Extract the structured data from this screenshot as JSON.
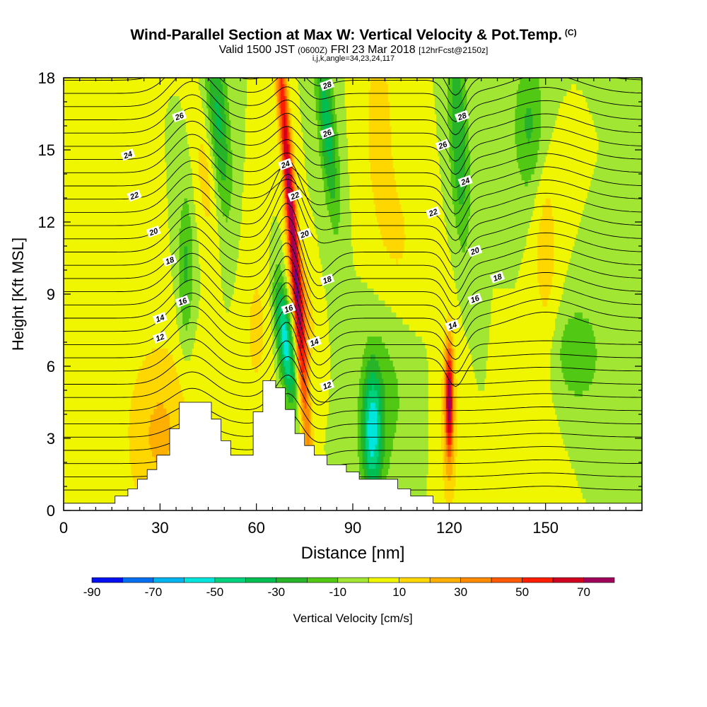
{
  "title": {
    "main": "Wind-Parallel Section at Max W: Vertical Velocity & Pot.Temp.",
    "copyright": "(C)",
    "valid_prefix": "Valid 1500 JST",
    "valid_utc": "(0600Z)",
    "valid_date": "FRI 23 Mar 2018",
    "forecast": "[12hrFcst@2150z]",
    "indices": "i,j,k,angle=34,23,24,117"
  },
  "chart_data": {
    "type": "heatmap",
    "xlabel": "Distance [nm]",
    "ylabel": "Height [Kft MSL]",
    "xlim": [
      0,
      180
    ],
    "ylim": [
      0,
      18
    ],
    "x_ticks": [
      0,
      30,
      60,
      90,
      120,
      150
    ],
    "y_ticks": [
      0,
      3,
      6,
      9,
      12,
      15,
      18
    ],
    "colorbar": {
      "label": "Vertical Velocity [cm/s]",
      "tick_labels": [
        "-90",
        "-70",
        "-50",
        "-30",
        "-10",
        "10",
        "30",
        "50",
        "70"
      ],
      "tick_values": [
        -90,
        -70,
        -50,
        -30,
        -10,
        10,
        30,
        50,
        70
      ],
      "bounds": [
        -90,
        -80,
        -70,
        -60,
        -50,
        -40,
        -30,
        -20,
        -10,
        0,
        10,
        20,
        30,
        40,
        50,
        60,
        70,
        80
      ],
      "colors": [
        "#0010f0",
        "#0070f0",
        "#00b4f0",
        "#00e6dc",
        "#00d27d",
        "#00be52",
        "#28b428",
        "#50c814",
        "#a0e632",
        "#f0f500",
        "#ffd700",
        "#ffaf00",
        "#ff8c00",
        "#ff5a00",
        "#ff1e00",
        "#d2001e",
        "#a0005a",
        "#640096"
      ]
    },
    "theta_contour_labels": [
      {
        "x": 36,
        "y": 16.4,
        "text": "26"
      },
      {
        "x": 20,
        "y": 14.8,
        "text": "24"
      },
      {
        "x": 22,
        "y": 13.1,
        "text": "22"
      },
      {
        "x": 28,
        "y": 11.6,
        "text": "20"
      },
      {
        "x": 33,
        "y": 10.4,
        "text": "18"
      },
      {
        "x": 37,
        "y": 8.7,
        "text": "16"
      },
      {
        "x": 30,
        "y": 8.0,
        "text": "14"
      },
      {
        "x": 30,
        "y": 7.2,
        "text": "12"
      },
      {
        "x": 82,
        "y": 17.7,
        "text": "28"
      },
      {
        "x": 82,
        "y": 15.7,
        "text": "26"
      },
      {
        "x": 69,
        "y": 14.4,
        "text": "24"
      },
      {
        "x": 72,
        "y": 13.1,
        "text": "22"
      },
      {
        "x": 75,
        "y": 11.5,
        "text": "20"
      },
      {
        "x": 82,
        "y": 9.6,
        "text": "18"
      },
      {
        "x": 70,
        "y": 8.4,
        "text": "16"
      },
      {
        "x": 78,
        "y": 7.0,
        "text": "14"
      },
      {
        "x": 82,
        "y": 5.2,
        "text": "12"
      },
      {
        "x": 124,
        "y": 16.4,
        "text": "28"
      },
      {
        "x": 118,
        "y": 15.2,
        "text": "26"
      },
      {
        "x": 125,
        "y": 13.7,
        "text": "24"
      },
      {
        "x": 115,
        "y": 12.4,
        "text": "22"
      },
      {
        "x": 128,
        "y": 10.8,
        "text": "20"
      },
      {
        "x": 135,
        "y": 9.7,
        "text": "18"
      },
      {
        "x": 128,
        "y": 8.8,
        "text": "16"
      },
      {
        "x": 121,
        "y": 7.7,
        "text": "14"
      }
    ],
    "terrain": [
      [
        0,
        0.3
      ],
      [
        16,
        0.3
      ],
      [
        16,
        0.6
      ],
      [
        20,
        0.6
      ],
      [
        20,
        0.9
      ],
      [
        23,
        0.9
      ],
      [
        23,
        1.3
      ],
      [
        26,
        1.3
      ],
      [
        26,
        1.7
      ],
      [
        29,
        1.7
      ],
      [
        29,
        2.3
      ],
      [
        33,
        2.3
      ],
      [
        33,
        3.4
      ],
      [
        36,
        3.4
      ],
      [
        36,
        4.5
      ],
      [
        46,
        4.5
      ],
      [
        46,
        3.8
      ],
      [
        49,
        3.8
      ],
      [
        49,
        2.9
      ],
      [
        52,
        2.9
      ],
      [
        52,
        2.3
      ],
      [
        59,
        2.3
      ],
      [
        59,
        4.1
      ],
      [
        62,
        4.1
      ],
      [
        62,
        5.4
      ],
      [
        66,
        5.4
      ],
      [
        66,
        5.1
      ],
      [
        69,
        5.1
      ],
      [
        69,
        4.2
      ],
      [
        72,
        4.2
      ],
      [
        72,
        3.2
      ],
      [
        75,
        3.2
      ],
      [
        75,
        2.7
      ],
      [
        78,
        2.7
      ],
      [
        78,
        2.3
      ],
      [
        82,
        2.3
      ],
      [
        82,
        1.9
      ],
      [
        88,
        1.9
      ],
      [
        88,
        1.6
      ],
      [
        92,
        1.6
      ],
      [
        92,
        1.3
      ],
      [
        104,
        1.3
      ],
      [
        104,
        0.9
      ],
      [
        108,
        0.9
      ],
      [
        108,
        0.6
      ],
      [
        115,
        0.6
      ],
      [
        115,
        0.3
      ],
      [
        180,
        0.3
      ]
    ]
  }
}
